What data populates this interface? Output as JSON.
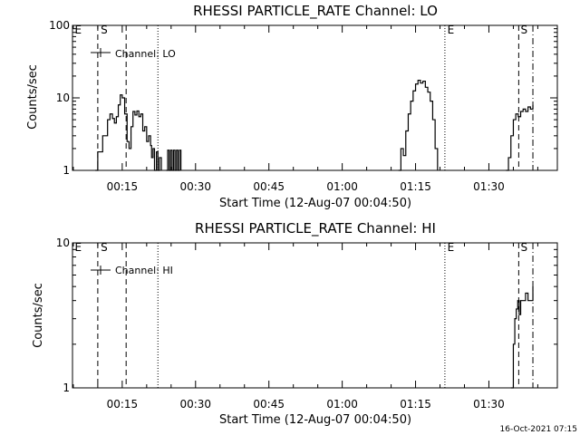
{
  "timestamp": "16-Oct-2021 07:15",
  "colors": {
    "background": "#ffffff",
    "foreground": "#000000"
  },
  "chart_data": [
    {
      "type": "line",
      "title": "RHESSI PARTICLE_RATE Channel: LO",
      "xlabel": "Start Time (12-Aug-07 00:04:50)",
      "ylabel": "Counts/sec",
      "y_scale": "log",
      "xlim": [
        4.83,
        104.0
      ],
      "ylim": [
        1,
        100
      ],
      "x_unit": "minutes after 00:00 UT",
      "x_ticks": [
        15,
        30,
        45,
        60,
        75,
        90
      ],
      "x_tick_labels": [
        "00:15",
        "00:30",
        "00:45",
        "01:00",
        "01:15",
        "01:30"
      ],
      "y_ticks": [
        1,
        10,
        100
      ],
      "y_tick_labels": [
        "1",
        "10",
        "100"
      ],
      "legend": {
        "label": "Channel: LO",
        "placement": "top-left"
      },
      "markers": [
        {
          "x": 10.0,
          "style": "dashed",
          "label": ""
        },
        {
          "x": 15.8,
          "style": "dashed",
          "label": ""
        },
        {
          "x": 22.3,
          "style": "dotted",
          "label": ""
        },
        {
          "x": 81.0,
          "style": "dotted",
          "label": ""
        },
        {
          "x": 96.1,
          "style": "dashed",
          "label": ""
        },
        {
          "x": 99.0,
          "style": "dashdot",
          "label": ""
        }
      ],
      "marker_labels": [
        {
          "x": 5.3,
          "text": "E"
        },
        {
          "x": 10.6,
          "text": "S"
        },
        {
          "x": 81.5,
          "text": "E"
        },
        {
          "x": 96.5,
          "text": "S"
        }
      ],
      "segments": [
        {
          "x": [
            9.5,
            10.0,
            11.0,
            12.0,
            12.5,
            13.0,
            13.4,
            13.8,
            14.2,
            14.6,
            15.0,
            15.5,
            16.0,
            16.4,
            16.8,
            17.2,
            17.6,
            18.0,
            18.4,
            18.8,
            19.2,
            19.6,
            20.0,
            20.4,
            20.8,
            21.0,
            21.3,
            21.6,
            22.0,
            22.3,
            22.6,
            23.0
          ],
          "y": [
            1.0,
            1.8,
            3.0,
            5.0,
            6.0,
            5.2,
            4.5,
            5.5,
            8.0,
            11.0,
            10.0,
            6.0,
            2.5,
            2.0,
            4.0,
            6.5,
            5.8,
            6.6,
            5.5,
            6.0,
            3.5,
            4.0,
            2.5,
            3.0,
            2.2,
            1.5,
            2.0,
            1.0,
            1.8,
            1.0,
            1.5,
            1.0
          ]
        },
        {
          "x": [
            24.0,
            24.3,
            24.6,
            24.9,
            25.2,
            25.5,
            25.8,
            26.1,
            26.4,
            26.7,
            27.0
          ],
          "y": [
            1.0,
            1.9,
            1.0,
            1.9,
            1.0,
            1.9,
            1.0,
            1.9,
            1.0,
            1.9,
            1.0
          ]
        },
        {
          "x": [
            71.5,
            72.0,
            72.5,
            73.0,
            73.5,
            74.0,
            74.5,
            75.0,
            75.5,
            76.0,
            76.5,
            77.0,
            77.5,
            78.0,
            78.5,
            79.0,
            79.5
          ],
          "y": [
            1.0,
            2.0,
            1.6,
            3.5,
            6.0,
            9.0,
            12.5,
            15.5,
            17.5,
            16.0,
            17.0,
            14.0,
            12.0,
            9.0,
            5.0,
            2.0,
            1.0
          ]
        },
        {
          "x": [
            93.5,
            94.0,
            94.5,
            95.0,
            95.5,
            96.0,
            96.5,
            97.0,
            97.5,
            98.0,
            98.5,
            99.0
          ],
          "y": [
            1.0,
            1.5,
            3.0,
            5.0,
            6.0,
            5.5,
            6.5,
            7.0,
            6.5,
            7.5,
            7.0,
            8.0
          ]
        }
      ]
    },
    {
      "type": "line",
      "title": "RHESSI PARTICLE_RATE Channel: HI",
      "xlabel": "Start Time (12-Aug-07 00:04:50)",
      "ylabel": "Counts/sec",
      "y_scale": "log",
      "xlim": [
        4.83,
        104.0
      ],
      "ylim": [
        1,
        10
      ],
      "x_unit": "minutes after 00:00 UT",
      "x_ticks": [
        15,
        30,
        45,
        60,
        75,
        90
      ],
      "x_tick_labels": [
        "00:15",
        "00:30",
        "00:45",
        "01:00",
        "01:15",
        "01:30"
      ],
      "y_ticks": [
        1,
        10
      ],
      "y_tick_labels": [
        "1",
        "10"
      ],
      "legend": {
        "label": "Channel: HI",
        "placement": "top-left"
      },
      "markers": [
        {
          "x": 10.0,
          "style": "dashed",
          "label": ""
        },
        {
          "x": 15.8,
          "style": "dashed",
          "label": ""
        },
        {
          "x": 22.3,
          "style": "dotted",
          "label": ""
        },
        {
          "x": 81.0,
          "style": "dotted",
          "label": ""
        },
        {
          "x": 96.1,
          "style": "dashed",
          "label": ""
        },
        {
          "x": 99.0,
          "style": "dashdot",
          "label": ""
        }
      ],
      "marker_labels": [
        {
          "x": 5.3,
          "text": "E"
        },
        {
          "x": 10.6,
          "text": "S"
        },
        {
          "x": 81.5,
          "text": "E"
        },
        {
          "x": 96.5,
          "text": "S"
        }
      ],
      "segments": [
        {
          "x": [
            94.5,
            95.0,
            95.3,
            95.6,
            95.9,
            96.2,
            96.5,
            97.0,
            97.5,
            98.0,
            98.5,
            99.0
          ],
          "y": [
            1.0,
            2.0,
            3.0,
            3.5,
            4.0,
            3.2,
            4.0,
            4.0,
            4.5,
            4.0,
            4.0,
            5.0
          ]
        }
      ]
    }
  ]
}
